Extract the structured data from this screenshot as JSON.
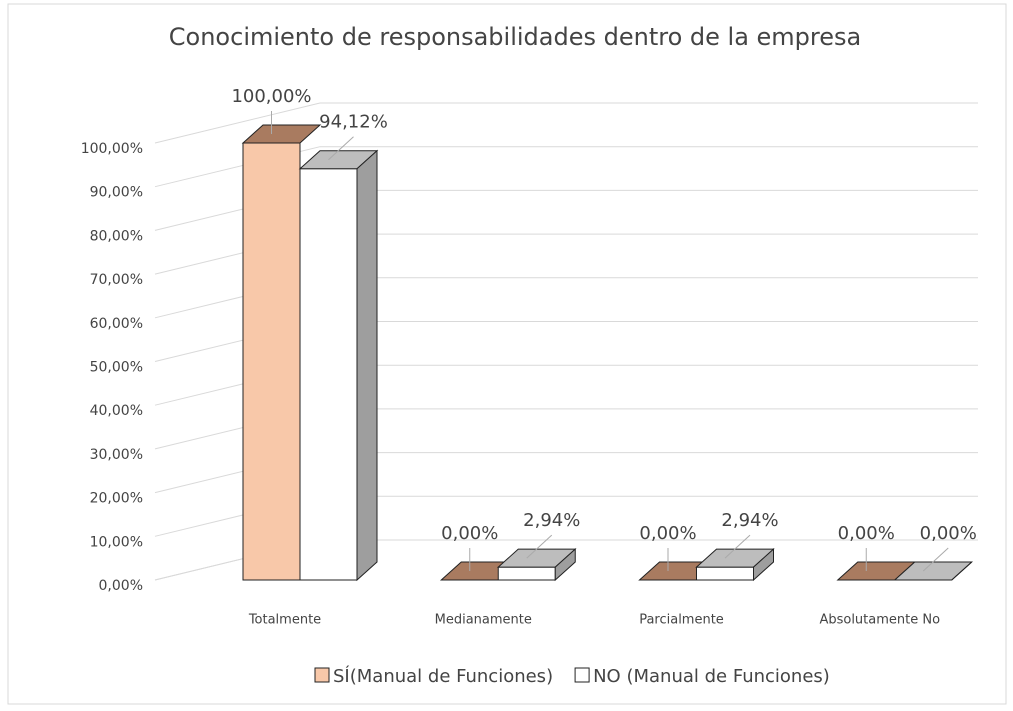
{
  "chart_data": {
    "type": "bar3d",
    "title": "Conocimiento de responsabilidades dentro de la empresa",
    "categories": [
      "Totalmente",
      "Medianamente",
      "Parcialmente",
      "Absolutamente No"
    ],
    "series": [
      {
        "name": "SÍ(Manual de Funciones)",
        "color": "#f8c8a9",
        "top_color": "#a97b60",
        "values": [
          100,
          0,
          0,
          0
        ],
        "value_labels": [
          "100,00%",
          "0,00%",
          "0,00%",
          "0,00%"
        ]
      },
      {
        "name": "NO (Manual de Funciones)",
        "color": "#ffffff",
        "top_color": "#bdbdbd",
        "values": [
          94.12,
          2.94,
          2.94,
          0
        ],
        "value_labels": [
          "94,12%",
          "2,94%",
          "2,94%",
          "0,00%"
        ]
      }
    ],
    "ylim": [
      0,
      100
    ],
    "yticks": [
      {
        "value": 0,
        "label": "0,00%"
      },
      {
        "value": 10,
        "label": "10,00%"
      },
      {
        "value": 20,
        "label": "20,00%"
      },
      {
        "value": 30,
        "label": "30,00%"
      },
      {
        "value": 40,
        "label": "40,00%"
      },
      {
        "value": 50,
        "label": "50,00%"
      },
      {
        "value": 60,
        "label": "60,00%"
      },
      {
        "value": 70,
        "label": "70,00%"
      },
      {
        "value": 80,
        "label": "80,00%"
      },
      {
        "value": 90,
        "label": "90,00%"
      },
      {
        "value": 100,
        "label": "100,00%"
      }
    ],
    "grid": true,
    "legend": "bottom"
  }
}
